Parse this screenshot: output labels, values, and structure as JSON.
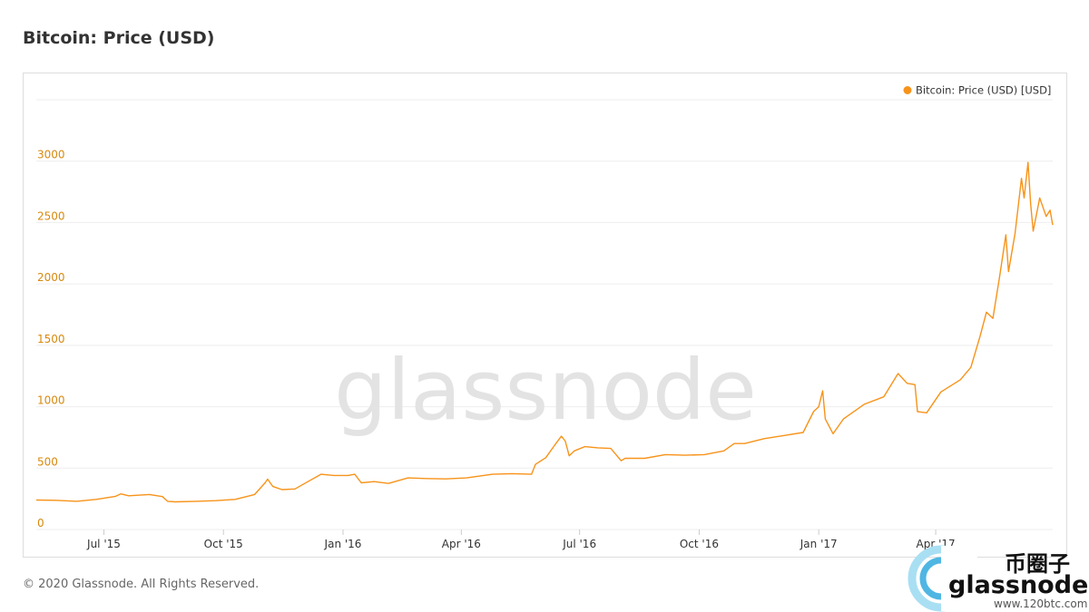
{
  "page": {
    "title": "Bitcoin: Price (USD)",
    "footer": "© 2020 Glassnode. All Rights Reserved.",
    "watermark": "glassnode"
  },
  "logo": {
    "brand": "glassnode",
    "cjk": "币圈子",
    "url": "www.120btc.com"
  },
  "colors": {
    "series": "#f7931a",
    "axis_label": "#d8890e",
    "grid": "#eeeeee",
    "watermark": "#e3e3e3"
  },
  "chart_data": {
    "type": "line",
    "title": "Bitcoin: Price (USD)",
    "xlabel": "",
    "ylabel": "",
    "x_axis_type": "date",
    "xlim": [
      "2015-05-10",
      "2017-06-30"
    ],
    "ylim": [
      0,
      3500
    ],
    "yticks": [
      0,
      500,
      1000,
      1500,
      2000,
      2500,
      3000
    ],
    "xticks": [
      {
        "date": "2015-07-01",
        "label": "Jul '15"
      },
      {
        "date": "2015-10-01",
        "label": "Oct '15"
      },
      {
        "date": "2016-01-01",
        "label": "Jan '16"
      },
      {
        "date": "2016-04-01",
        "label": "Apr '16"
      },
      {
        "date": "2016-07-01",
        "label": "Jul '16"
      },
      {
        "date": "2016-10-01",
        "label": "Oct '16"
      },
      {
        "date": "2017-01-01",
        "label": "Jan '17"
      },
      {
        "date": "2017-04-01",
        "label": "Apr '17"
      }
    ],
    "grid": true,
    "legend_position": "top-right",
    "series": [
      {
        "name": "Bitcoin: Price (USD) [USD]",
        "color": "#f7931a",
        "points": [
          [
            "2015-05-10",
            240
          ],
          [
            "2015-05-25",
            238
          ],
          [
            "2015-06-10",
            230
          ],
          [
            "2015-06-25",
            245
          ],
          [
            "2015-07-10",
            270
          ],
          [
            "2015-07-14",
            290
          ],
          [
            "2015-07-20",
            275
          ],
          [
            "2015-08-05",
            285
          ],
          [
            "2015-08-15",
            268
          ],
          [
            "2015-08-19",
            230
          ],
          [
            "2015-08-25",
            225
          ],
          [
            "2015-09-10",
            230
          ],
          [
            "2015-09-25",
            235
          ],
          [
            "2015-10-10",
            245
          ],
          [
            "2015-10-25",
            285
          ],
          [
            "2015-11-02",
            380
          ],
          [
            "2015-11-04",
            410
          ],
          [
            "2015-11-08",
            350
          ],
          [
            "2015-11-15",
            325
          ],
          [
            "2015-11-25",
            330
          ],
          [
            "2015-12-05",
            390
          ],
          [
            "2015-12-15",
            450
          ],
          [
            "2015-12-25",
            440
          ],
          [
            "2016-01-05",
            440
          ],
          [
            "2016-01-10",
            450
          ],
          [
            "2016-01-15",
            380
          ],
          [
            "2016-01-25",
            390
          ],
          [
            "2016-02-05",
            375
          ],
          [
            "2016-02-20",
            420
          ],
          [
            "2016-03-05",
            415
          ],
          [
            "2016-03-20",
            412
          ],
          [
            "2016-04-05",
            420
          ],
          [
            "2016-04-25",
            450
          ],
          [
            "2016-05-10",
            455
          ],
          [
            "2016-05-25",
            450
          ],
          [
            "2016-05-28",
            530
          ],
          [
            "2016-06-05",
            585
          ],
          [
            "2016-06-12",
            690
          ],
          [
            "2016-06-17",
            760
          ],
          [
            "2016-06-20",
            720
          ],
          [
            "2016-06-23",
            600
          ],
          [
            "2016-06-27",
            640
          ],
          [
            "2016-07-05",
            675
          ],
          [
            "2016-07-15",
            665
          ],
          [
            "2016-07-25",
            660
          ],
          [
            "2016-08-02",
            560
          ],
          [
            "2016-08-05",
            580
          ],
          [
            "2016-08-20",
            580
          ],
          [
            "2016-09-05",
            610
          ],
          [
            "2016-09-20",
            605
          ],
          [
            "2016-10-05",
            610
          ],
          [
            "2016-10-20",
            640
          ],
          [
            "2016-10-28",
            700
          ],
          [
            "2016-11-05",
            700
          ],
          [
            "2016-11-20",
            740
          ],
          [
            "2016-12-05",
            765
          ],
          [
            "2016-12-20",
            790
          ],
          [
            "2016-12-28",
            960
          ],
          [
            "2017-01-01",
            1000
          ],
          [
            "2017-01-04",
            1130
          ],
          [
            "2017-01-06",
            900
          ],
          [
            "2017-01-12",
            780
          ],
          [
            "2017-01-20",
            900
          ],
          [
            "2017-02-05",
            1020
          ],
          [
            "2017-02-20",
            1080
          ],
          [
            "2017-03-03",
            1270
          ],
          [
            "2017-03-10",
            1190
          ],
          [
            "2017-03-16",
            1180
          ],
          [
            "2017-03-18",
            960
          ],
          [
            "2017-03-25",
            950
          ],
          [
            "2017-04-05",
            1120
          ],
          [
            "2017-04-20",
            1220
          ],
          [
            "2017-04-28",
            1320
          ],
          [
            "2017-05-05",
            1570
          ],
          [
            "2017-05-10",
            1770
          ],
          [
            "2017-05-15",
            1720
          ],
          [
            "2017-05-20",
            2050
          ],
          [
            "2017-05-25",
            2400
          ],
          [
            "2017-05-27",
            2100
          ],
          [
            "2017-06-01",
            2410
          ],
          [
            "2017-06-06",
            2860
          ],
          [
            "2017-06-08",
            2700
          ],
          [
            "2017-06-11",
            2990
          ],
          [
            "2017-06-13",
            2650
          ],
          [
            "2017-06-15",
            2430
          ],
          [
            "2017-06-20",
            2700
          ],
          [
            "2017-06-25",
            2550
          ],
          [
            "2017-06-28",
            2600
          ],
          [
            "2017-06-30",
            2480
          ]
        ]
      }
    ]
  }
}
